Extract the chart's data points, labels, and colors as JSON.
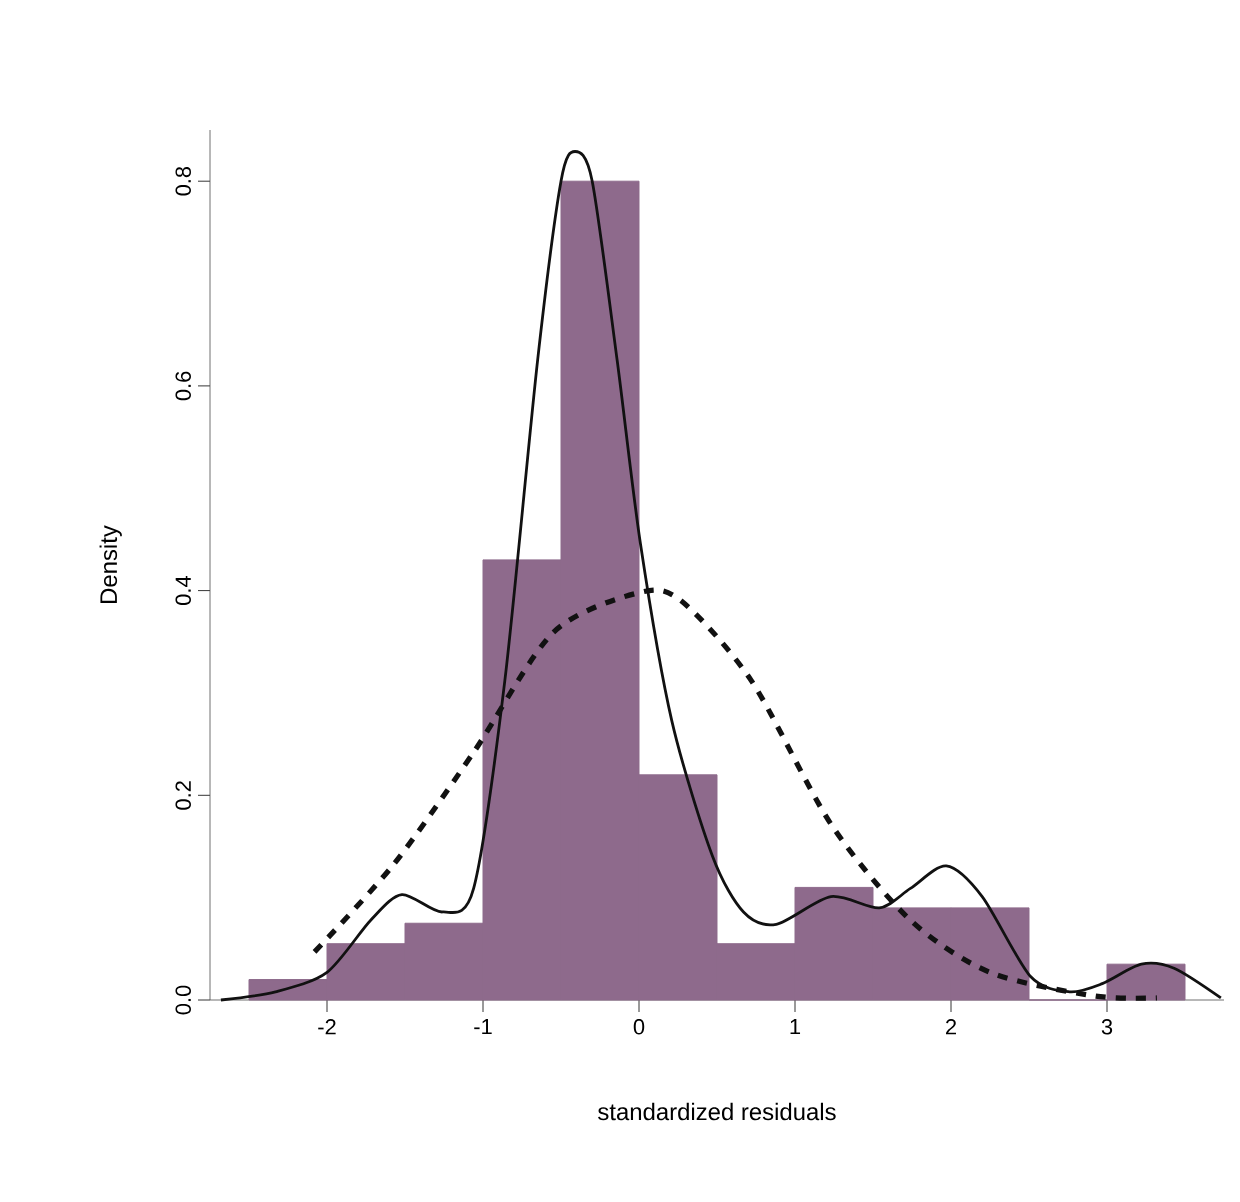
{
  "chart_data": {
    "type": "histogram",
    "xlabel": "standardized residuals",
    "ylabel": "Density",
    "color": "#8e6a8c",
    "bins": [
      -2.5,
      -2,
      -1.5,
      -1,
      -0.5,
      0,
      0.5,
      1,
      1.5,
      2,
      2.5,
      3,
      3.5
    ],
    "values": [
      0.02,
      0.055,
      0.075,
      0.43,
      0.8,
      0.22,
      0.055,
      0.11,
      0.09,
      0.09,
      0,
      0.035
    ],
    "series": [
      {
        "type": "line",
        "color": "#111111",
        "line_style": "solid",
        "x": [
          -2.68,
          -2.33,
          -2.0,
          -1.72,
          -1.52,
          -1.26,
          -1.06,
          -0.86,
          -0.65,
          -0.5,
          -0.41,
          -0.3,
          -0.14,
          0.01,
          0.21,
          0.47,
          0.67,
          0.88,
          1.23,
          1.54,
          1.74,
          1.97,
          2.2,
          2.51,
          2.76,
          2.97,
          3.22,
          3.43,
          3.73
        ],
        "values": [
          0,
          0.008,
          0.027,
          0.078,
          0.103,
          0.086,
          0.109,
          0.312,
          0.625,
          0.8,
          0.829,
          0.8,
          0.625,
          0.445,
          0.273,
          0.141,
          0.086,
          0.074,
          0.101,
          0.09,
          0.109,
          0.131,
          0.101,
          0.023,
          0.008,
          0.016,
          0.035,
          0.031,
          0.002
        ]
      },
      {
        "type": "line",
        "color": "#111111",
        "line_style": "dashed",
        "x": [
          -2.08,
          -1.57,
          -1.06,
          -0.55,
          0,
          0.27,
          0.72,
          1.23,
          1.74,
          2.25,
          2.92,
          3.32
        ],
        "values": [
          0.047,
          0.133,
          0.242,
          0.359,
          0.398,
          0.39,
          0.312,
          0.172,
          0.078,
          0.027,
          0.004,
          0.002
        ]
      }
    ],
    "xlim": [
      -2.75,
      3.75
    ],
    "ylim": [
      0,
      0.85
    ],
    "xticks": [
      -2,
      -1,
      0,
      1,
      2,
      3
    ],
    "yticks": [
      {
        "value": 0,
        "label": "0.0"
      },
      0.2,
      0.4,
      0.6,
      0.8
    ]
  }
}
